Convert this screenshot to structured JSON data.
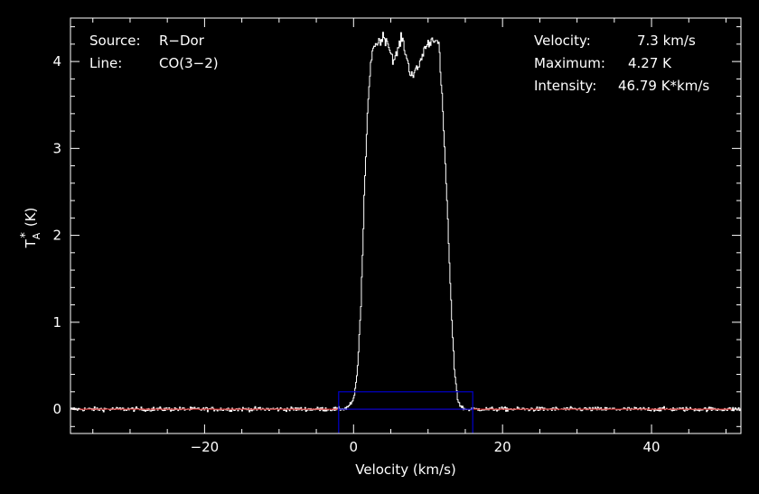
{
  "chart_data": {
    "type": "line",
    "xlabel": "Velocity (km/s)",
    "ylabel_main": "T",
    "ylabel_sub": "A",
    "ylabel_sup": "*",
    "ylabel_unit": "(K)",
    "xlim": [
      -38,
      52
    ],
    "ylim": [
      -0.28,
      4.5
    ],
    "x_ticks": [
      -20,
      0,
      20,
      40
    ],
    "y_ticks": [
      0,
      1,
      2,
      3,
      4
    ],
    "grid": false,
    "colors": {
      "background": "#000000",
      "spectrum": "#ffffff",
      "baseline": "#cc2222",
      "window": "#0000cc",
      "frame": "#ffffff"
    },
    "annotations_left": [
      {
        "label": "Source:",
        "value": "R−Dor"
      },
      {
        "label": "Line:",
        "value": "CO(3−2)"
      }
    ],
    "annotations_right": [
      {
        "label": "Velocity:",
        "value": "7.3 km/s"
      },
      {
        "label": "Maximum:",
        "value": "4.27 K"
      },
      {
        "label": "Intensity:",
        "value": "46.79 K*km/s"
      }
    ],
    "baseline_y": 0,
    "integration_window": {
      "x": [
        -2,
        16
      ],
      "y": [
        0,
        0.2
      ]
    },
    "series": [
      {
        "profile_x": [
          -38,
          -2,
          -1,
          0,
          0.5,
          1,
          1.5,
          2,
          2.5,
          3,
          3.5,
          4,
          4.5,
          5,
          5.5,
          6,
          6.5,
          7,
          7.5,
          8,
          8.5,
          9,
          9.5,
          10,
          10.5,
          11,
          11.5,
          12,
          12.5,
          13,
          13.5,
          14,
          14.5,
          15,
          16,
          52
        ],
        "profile_y": [
          0,
          0,
          0.01,
          0.1,
          0.4,
          1.2,
          2.6,
          3.6,
          4.15,
          4.2,
          4.24,
          4.28,
          4.25,
          4.1,
          4.0,
          4.15,
          4.28,
          4.1,
          3.9,
          3.85,
          3.9,
          4.0,
          4.15,
          4.2,
          4.25,
          4.28,
          4.15,
          3.4,
          2.5,
          1.4,
          0.5,
          0.1,
          0.02,
          0,
          0,
          0
        ],
        "noise_rms": 0.012
      }
    ]
  }
}
